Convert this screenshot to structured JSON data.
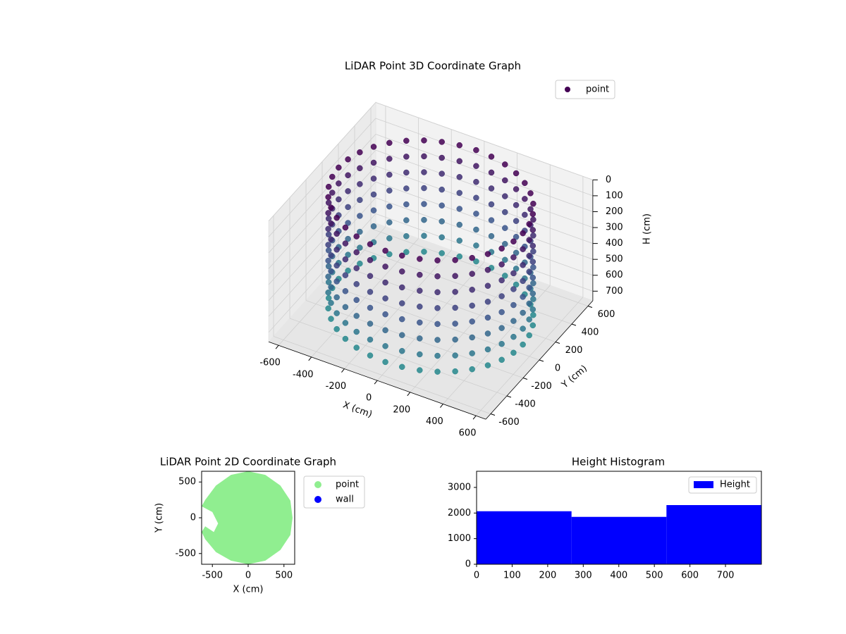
{
  "chart_data": [
    {
      "type": "scatter3d",
      "title": "LiDAR Point 3D Coordinate Graph",
      "x_label": "X (cm)",
      "y_label": "Y (cm)",
      "z_label": "H (cm)",
      "xlim": [
        -660,
        660
      ],
      "ylim": [
        -660,
        660
      ],
      "zlim": [
        0,
        760
      ],
      "z_inverted": true,
      "xticks": [
        -600,
        -400,
        -200,
        0,
        200,
        400,
        600
      ],
      "yticks": [
        -600,
        -400,
        -200,
        0,
        200,
        400,
        600
      ],
      "zticks": [
        0,
        100,
        200,
        300,
        400,
        500,
        600,
        700
      ],
      "colormap": [
        "#440154",
        "#3b528b",
        "#21918c"
      ],
      "series": [
        {
          "name": "point",
          "color": "#440154",
          "x": [
            560,
            551,
            526,
            485,
            429,
            360,
            280,
            192,
            97,
            0,
            -97,
            -192,
            -280,
            -360,
            -429,
            -485,
            -526,
            -551,
            -560,
            -551,
            -526,
            -485,
            -429,
            -360,
            -280,
            -192,
            -97,
            0,
            97,
            192,
            280,
            360,
            429,
            485,
            526,
            551
          ],
          "y": [
            0,
            97,
            192,
            280,
            360,
            429,
            485,
            526,
            551,
            560,
            551,
            526,
            485,
            429,
            360,
            280,
            192,
            97,
            0,
            -97,
            -192,
            -280,
            -360,
            -429,
            -485,
            -526,
            -551,
            -560,
            -551,
            -526,
            -485,
            -429,
            -360,
            -280,
            -192,
            -97
          ],
          "z_levels": [
            0,
            100,
            200,
            300,
            400,
            500,
            600,
            700
          ]
        }
      ],
      "legend": "upper right"
    },
    {
      "type": "scatter",
      "title": "LiDAR Point 2D Coordinate Graph",
      "x_label": "X (cm)",
      "y_label": "Y (cm)",
      "xlim": [
        -650,
        650
      ],
      "ylim": [
        -650,
        650
      ],
      "xticks": [
        -500,
        0,
        500
      ],
      "yticks": [
        -500,
        0,
        500
      ],
      "series": [
        {
          "name": "point",
          "color": "#90ee90",
          "x": [
            620,
            590,
            450,
            240,
            0,
            -240,
            -450,
            -600,
            -650,
            -500,
            -420,
            -480,
            -600,
            -650,
            -600,
            -450,
            -240,
            0,
            240,
            450,
            590
          ],
          "y": [
            0,
            240,
            450,
            600,
            650,
            600,
            450,
            250,
            160,
            80,
            -80,
            -200,
            -120,
            -200,
            -300,
            -480,
            -600,
            -650,
            -600,
            -450,
            -240
          ]
        },
        {
          "name": "wall",
          "color": "#0000ff",
          "x": [],
          "y": []
        }
      ],
      "legend": "outside right"
    },
    {
      "type": "histogram",
      "title": "Height Histogram",
      "bins": [
        0,
        267,
        534,
        801
      ],
      "values": [
        2070,
        1850,
        2310
      ],
      "series_name": "Height",
      "color": "#0000ff",
      "xlim": [
        0,
        801
      ],
      "ylim": [
        0,
        3630
      ],
      "xticks": [
        0,
        100,
        200,
        300,
        400,
        500,
        600,
        700
      ],
      "yticks": [
        0,
        1000,
        2000,
        3000
      ],
      "legend": "upper right"
    }
  ]
}
